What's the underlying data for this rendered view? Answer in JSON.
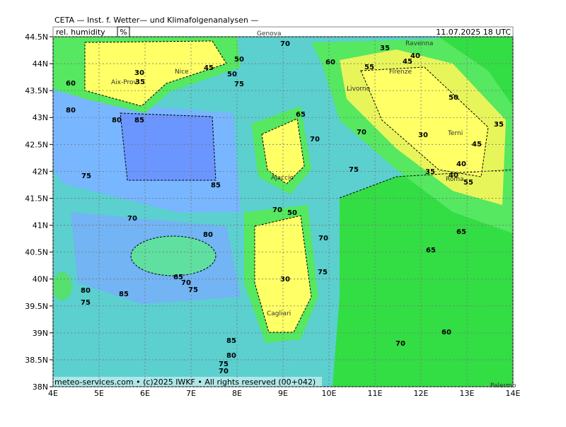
{
  "header": {
    "institute": "CETA — Inst. f. Wetter— und Klimafolgenanalysen —",
    "parameter": "rel. humidity",
    "unit": "%",
    "valid": "11.07.2025 18 UTC"
  },
  "footer": "meteo-services.com • (c)2025 IWKF • All rights reserved (00+042)",
  "lat_ticks": [
    {
      "value": 44.5,
      "label": "44.5N"
    },
    {
      "value": 44,
      "label": "44N"
    },
    {
      "value": 43.5,
      "label": "43.5N"
    },
    {
      "value": 43,
      "label": "43N"
    },
    {
      "value": 42.5,
      "label": "42.5N"
    },
    {
      "value": 42,
      "label": "42N"
    },
    {
      "value": 41.5,
      "label": "41.5N"
    },
    {
      "value": 41,
      "label": "41N"
    },
    {
      "value": 40.5,
      "label": "40.5N"
    },
    {
      "value": 40,
      "label": "40N"
    },
    {
      "value": 39.5,
      "label": "39.5N"
    },
    {
      "value": 39,
      "label": "39N"
    },
    {
      "value": 38.5,
      "label": "38.5N"
    },
    {
      "value": 38,
      "label": "38N"
    }
  ],
  "lon_ticks": [
    {
      "value": 4,
      "label": "4E"
    },
    {
      "value": 5,
      "label": "5E"
    },
    {
      "value": 6,
      "label": "6E"
    },
    {
      "value": 7,
      "label": "7E"
    },
    {
      "value": 8,
      "label": "8E"
    },
    {
      "value": 9,
      "label": "9E"
    },
    {
      "value": 10,
      "label": "10E"
    },
    {
      "value": 11,
      "label": "11E"
    },
    {
      "value": 12,
      "label": "12E"
    },
    {
      "value": 13,
      "label": "13E"
    },
    {
      "value": 14,
      "label": "14E"
    }
  ],
  "cities": [
    "Genova",
    "Ravenna",
    "Nice",
    "Aix-Prov.",
    "Firenze",
    "Livorno",
    "Ajaccio",
    "Roma",
    "Terni",
    "Cagliari",
    "Palermo"
  ],
  "contour_labels": [
    "50",
    "30",
    "35",
    "45",
    "50",
    "75",
    "60",
    "80",
    "80",
    "85",
    "75",
    "85",
    "70",
    "80",
    "65",
    "70",
    "75",
    "80",
    "85",
    "75",
    "85",
    "80",
    "75",
    "70",
    "70",
    "60",
    "35",
    "40",
    "45",
    "55",
    "50",
    "30",
    "35",
    "45",
    "40",
    "35",
    "40",
    "55",
    "65",
    "65",
    "60",
    "70",
    "70",
    "75",
    "70",
    "70",
    "50",
    "30",
    "75",
    "70",
    "65"
  ]
}
